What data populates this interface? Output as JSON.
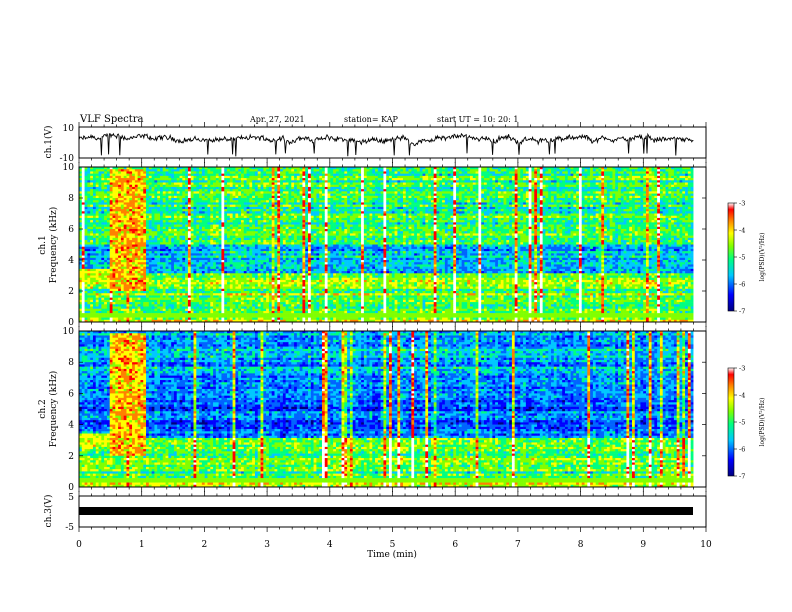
{
  "header": {
    "title": "VLF Spectra",
    "date": "Apr. 27, 2021",
    "station": "station= KAP",
    "start": "start  UT =   10: 20: 1"
  },
  "chart_data": [
    {
      "type": "line",
      "ylabel": "ch.1(V)",
      "xlim": [
        0,
        10
      ],
      "ylim": [
        -10,
        10
      ],
      "yticks": [
        "10",
        "-10"
      ],
      "description_values": {
        "level_mean": 2.0,
        "level_range": [
          -8.0,
          9.0
        ]
      }
    },
    {
      "type": "heatmap",
      "ylabel": "ch.1\nFrequency  (kHz)",
      "ylabel_line1": "ch.1",
      "ylabel_line2": "Frequency  (kHz)",
      "xlim": [
        0,
        9.8
      ],
      "ylim": [
        0,
        10
      ],
      "yticks": [
        "0",
        "2",
        "4",
        "6",
        "8",
        "10"
      ],
      "colorbar": {
        "label": "log(PSD)(V²/Hz)",
        "range": [
          -7,
          -3
        ],
        "ticks": [
          "-3",
          "-4",
          "-5",
          "-6",
          "-7"
        ]
      }
    },
    {
      "type": "heatmap",
      "ylabel": "ch.2\nFrequency  (kHz)",
      "ylabel_line1": "ch.2",
      "ylabel_line2": "Frequency  (kHz)",
      "xlim": [
        0,
        9.8
      ],
      "ylim": [
        0,
        10
      ],
      "yticks": [
        "0",
        "2",
        "4",
        "6",
        "8",
        "10"
      ],
      "colorbar": {
        "label": "log(PSD)(V²/Hz)",
        "range": [
          -7,
          -3
        ],
        "ticks": [
          "-3",
          "-4",
          "-5",
          "-6",
          "-7"
        ]
      }
    },
    {
      "type": "line",
      "ylabel": "ch.3(V)",
      "xlim": [
        0,
        10
      ],
      "ylim": [
        -5,
        5
      ],
      "yticks": [
        "5",
        "-5"
      ],
      "description_values": {
        "level_mean": -1.5
      }
    }
  ],
  "xaxis": {
    "label": "Time  (min)",
    "ticks": [
      "0",
      "1",
      "2",
      "3",
      "4",
      "5",
      "6",
      "7",
      "8",
      "9",
      "10"
    ]
  },
  "colors": {
    "spectrum_scale": [
      "#00007f",
      "#0000ff",
      "#00c8ff",
      "#00ff80",
      "#80ff00",
      "#ffff00",
      "#ff8000",
      "#ff0000",
      "#ffffff"
    ]
  }
}
